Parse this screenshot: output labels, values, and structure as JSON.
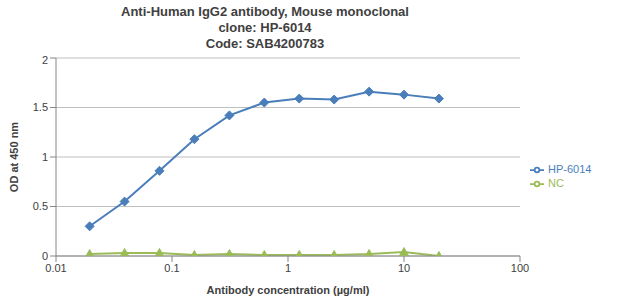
{
  "chart_data": {
    "type": "line",
    "title": "Anti-Human IgG2 antibody, Mouse monoclonal\nclone: HP-6014\nCode: SAB4200783",
    "x_label": "Antibody concentration (µg/ml)",
    "y_label": "OD at 450 nm",
    "x": [
      0.0195,
      0.039,
      0.078,
      0.156,
      0.3125,
      0.625,
      1.25,
      2.5,
      5,
      10,
      20
    ],
    "series": [
      {
        "name": "HP-6014",
        "color": "#4a7ebb",
        "marker": "diamond",
        "values": [
          0.3,
          0.55,
          0.86,
          1.18,
          1.42,
          1.55,
          1.59,
          1.58,
          1.66,
          1.63,
          1.59
        ]
      },
      {
        "name": "NC",
        "color": "#9bbb59",
        "marker": "triangle",
        "values": [
          0.02,
          0.03,
          0.03,
          0.01,
          0.02,
          0.01,
          0.01,
          0.01,
          0.02,
          0.04,
          0.0
        ]
      }
    ],
    "xlim": [
      0.01,
      100
    ],
    "xticks": [
      0.01,
      0.1,
      1,
      10,
      100
    ],
    "ylim": [
      0,
      2
    ],
    "yticks": [
      0,
      0.5,
      1,
      1.5,
      2
    ],
    "log": "x",
    "grid": true,
    "legend": "right"
  }
}
